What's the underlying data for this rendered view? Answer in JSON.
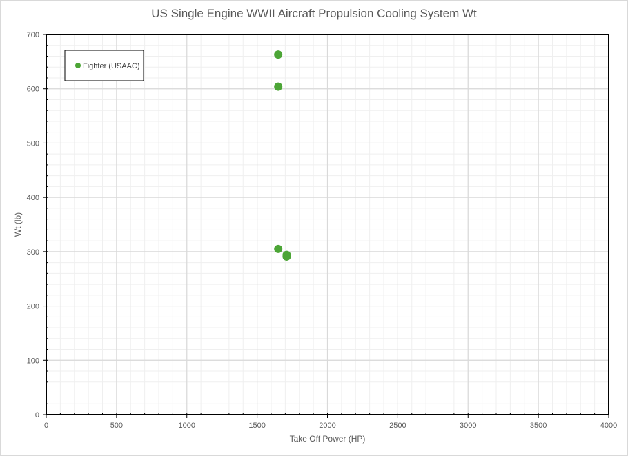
{
  "chart_data": {
    "type": "scatter",
    "title": "US Single Engine WWII Aircraft Propulsion Cooling System Wt",
    "xlabel": "Take Off Power (HP)",
    "ylabel": "Wt (lb)",
    "xlim": [
      0,
      4000
    ],
    "ylim": [
      0,
      700
    ],
    "x_ticks": [
      0,
      500,
      1000,
      1500,
      2000,
      2500,
      3000,
      3500,
      4000
    ],
    "y_ticks": [
      0,
      100,
      200,
      300,
      400,
      500,
      600,
      700
    ],
    "grid": "major and minor",
    "legend_position": "top-left",
    "series": [
      {
        "name": "Fighter (USAAC)",
        "color": "#4ca536",
        "points": [
          {
            "x": 1650,
            "y": 663
          },
          {
            "x": 1650,
            "y": 604
          },
          {
            "x": 1650,
            "y": 305
          },
          {
            "x": 1710,
            "y": 294
          },
          {
            "x": 1710,
            "y": 291
          }
        ]
      }
    ]
  }
}
